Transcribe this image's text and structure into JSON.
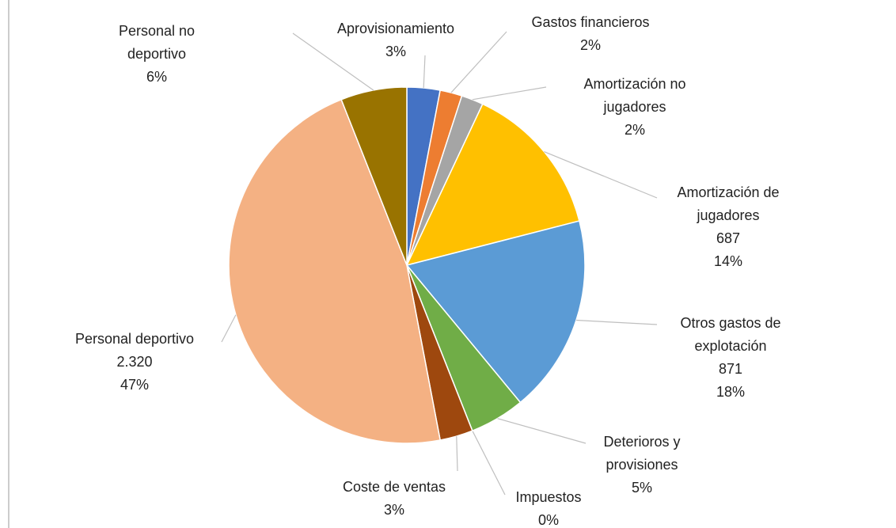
{
  "chart_data": {
    "type": "pie",
    "categories": [
      "Aprovisionamiento",
      "Gastos financieros",
      "Amortización no jugadores",
      "Amortización de jugadores",
      "Otros gastos de explotación",
      "Deterioros y provisiones",
      "Impuestos",
      "Coste de ventas",
      "Personal deportivo",
      "Personal no deportivo"
    ],
    "values": [
      3,
      2,
      2,
      14,
      18,
      5,
      0,
      3,
      47,
      6
    ],
    "value_labels": [
      "3%",
      "2%",
      "2%",
      "14%",
      "18%",
      "5%",
      "0%",
      "3%",
      "47%",
      "6%"
    ],
    "amounts": [
      null,
      null,
      null,
      687,
      871,
      null,
      null,
      null,
      2320,
      null
    ],
    "amount_labels": [
      null,
      null,
      null,
      "687",
      "871",
      null,
      null,
      null,
      "2.320",
      null
    ],
    "colors": [
      "#4472c4",
      "#ed7d31",
      "#a5a5a5",
      "#ffc000",
      "#5b9bd5",
      "#70ad47",
      "#264478",
      "#9e480e",
      "#f4b183",
      "#997300"
    ]
  }
}
